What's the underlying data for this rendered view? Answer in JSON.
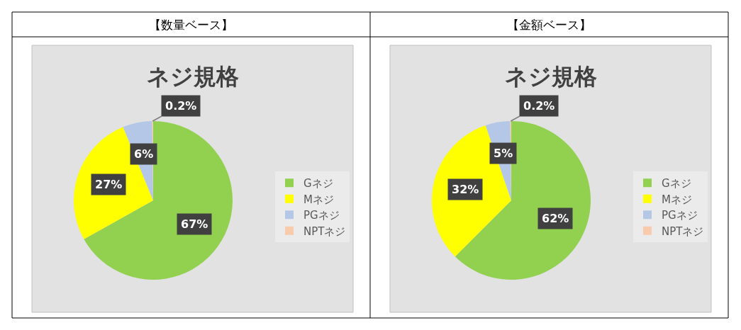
{
  "chart_data": [
    {
      "type": "pie",
      "title": "ネジ規格",
      "annotations": [
        "【数量ベース】"
      ],
      "categories": [
        "Gネジ",
        "Mネジ",
        "PGネジ",
        "NPTネジ"
      ],
      "values": [
        67,
        27,
        6,
        0.2
      ],
      "value_labels": [
        "67%",
        "27%",
        "6%",
        "0.2%"
      ],
      "colors": [
        "#92d050",
        "#ffff00",
        "#b4c7e7",
        "#f8cbad"
      ],
      "legend": "right"
    },
    {
      "type": "pie",
      "title": "ネジ規格",
      "annotations": [
        "【金額ベース】"
      ],
      "categories": [
        "Gネジ",
        "Mネジ",
        "PGネジ",
        "NPTネジ"
      ],
      "values": [
        62,
        32,
        5,
        0.2
      ],
      "value_labels": [
        "62%",
        "32%",
        "5%",
        "0.2%"
      ],
      "colors": [
        "#92d050",
        "#ffff00",
        "#b4c7e7",
        "#f8cbad"
      ],
      "legend": "right"
    }
  ]
}
